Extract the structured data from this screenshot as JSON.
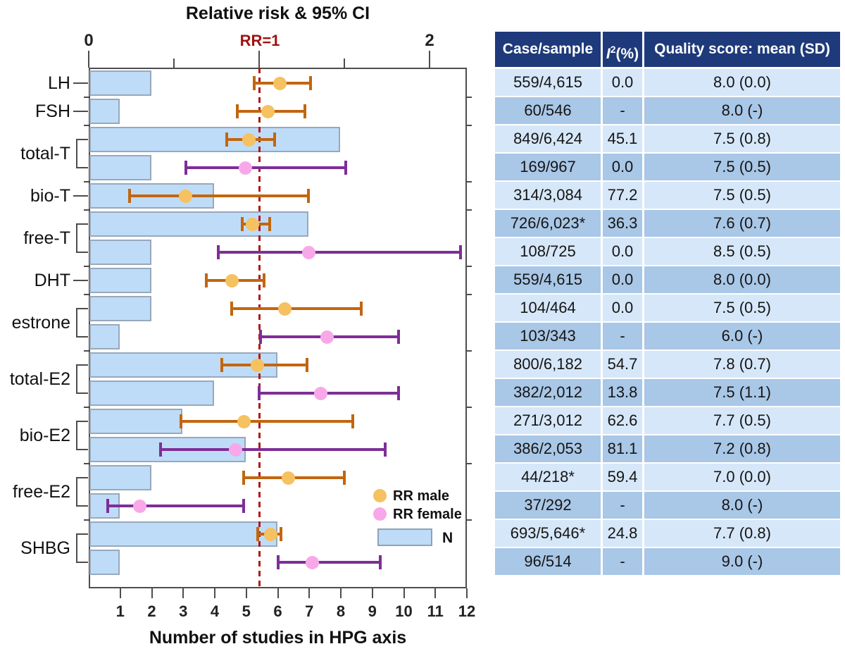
{
  "colors": {
    "male_point": "#F6C160",
    "male_line": "#C2660F",
    "female_point": "#F8A8E8",
    "female_line": "#7E2E96",
    "bar_fill": "#BEDCF8",
    "bar_border": "#98A8BC",
    "ref_line": "#B01818",
    "frame": "#4d4d4d",
    "table_header_bg": "#1E3A7B",
    "table_row_light": "#D6E7F9",
    "table_row_dark": "#A9C7E6"
  },
  "chart_data": {
    "type": "forest+bar",
    "title": "Relative risk & 95% CI",
    "top_axis": {
      "center_label": "RR=1",
      "min": 0,
      "max_edge": 2.22,
      "major_ticks": [
        0,
        1,
        2
      ],
      "minor_ticks": [
        0.5,
        1.5
      ],
      "labeled_ticks": [
        0,
        2
      ],
      "ref_line": 1
    },
    "bottom_axis": {
      "title": "Number of studies in HPG axis",
      "min": 0,
      "max": 12,
      "ticks": [
        1,
        2,
        3,
        4,
        5,
        6,
        7,
        8,
        9,
        10,
        11,
        12
      ]
    },
    "legend": {
      "male_label": "RR male",
      "female_label": "RR female",
      "bar_label": "N"
    },
    "rows": [
      {
        "category": "LH",
        "sex": "male",
        "n_studies": 2,
        "rr": 1.12,
        "ci": [
          0.97,
          1.3
        ]
      },
      {
        "category": "FSH",
        "sex": "male",
        "n_studies": 1,
        "rr": 1.05,
        "ci": [
          0.87,
          1.27
        ]
      },
      {
        "category": "total-T",
        "sex": "male",
        "n_studies": 8,
        "rr": 0.94,
        "ci": [
          0.81,
          1.09
        ]
      },
      {
        "category": "total-T",
        "sex": "female",
        "n_studies": 2,
        "rr": 0.92,
        "ci": [
          0.57,
          1.51
        ]
      },
      {
        "category": "bio-T",
        "sex": "male",
        "n_studies": 4,
        "rr": 0.57,
        "ci": [
          0.24,
          1.29
        ]
      },
      {
        "category": "free-T",
        "sex": "male",
        "n_studies": 7,
        "rr": 0.96,
        "ci": [
          0.9,
          1.06
        ]
      },
      {
        "category": "free-T",
        "sex": "female",
        "n_studies": 2,
        "rr": 1.29,
        "ci": [
          0.76,
          2.18
        ]
      },
      {
        "category": "DHT",
        "sex": "male",
        "n_studies": 2,
        "rr": 0.84,
        "ci": [
          0.69,
          1.03
        ]
      },
      {
        "category": "estrone",
        "sex": "male",
        "n_studies": 2,
        "rr": 1.15,
        "ci": [
          0.84,
          1.6
        ]
      },
      {
        "category": "estrone",
        "sex": "female",
        "n_studies": 1,
        "rr": 1.4,
        "ci": [
          1.01,
          1.82
        ]
      },
      {
        "category": "total-E2",
        "sex": "male",
        "n_studies": 6,
        "rr": 0.99,
        "ci": [
          0.78,
          1.28
        ]
      },
      {
        "category": "total-E2",
        "sex": "female",
        "n_studies": 4,
        "rr": 1.36,
        "ci": [
          1.0,
          1.82
        ]
      },
      {
        "category": "bio-E2",
        "sex": "male",
        "n_studies": 3,
        "rr": 0.91,
        "ci": [
          0.54,
          1.55
        ]
      },
      {
        "category": "bio-E2",
        "sex": "female",
        "n_studies": 5,
        "rr": 0.86,
        "ci": [
          0.42,
          1.74
        ]
      },
      {
        "category": "free-E2",
        "sex": "male",
        "n_studies": 2,
        "rr": 1.17,
        "ci": [
          0.91,
          1.5
        ]
      },
      {
        "category": "free-E2",
        "sex": "female",
        "n_studies": 1,
        "rr": 0.3,
        "ci": [
          0.11,
          0.91
        ]
      },
      {
        "category": "SHBG",
        "sex": "male",
        "n_studies": 6,
        "rr": 1.07,
        "ci": [
          0.99,
          1.13
        ]
      },
      {
        "category": "SHBG",
        "sex": "female",
        "n_studies": 1,
        "rr": 1.31,
        "ci": [
          1.11,
          1.71
        ]
      }
    ]
  },
  "table": {
    "headers": {
      "col1": "Case/sample",
      "col2_base": "I",
      "col2_sup": "2",
      "col2_rest": "(%)",
      "col3": "Quality score: mean (SD)"
    },
    "rows": [
      [
        "559/4,615",
        "0.0",
        "8.0 (0.0)"
      ],
      [
        "60/546",
        "-",
        "8.0 (-)"
      ],
      [
        "849/6,424",
        "45.1",
        "7.5 (0.8)"
      ],
      [
        "169/967",
        "0.0",
        "7.5 (0.5)"
      ],
      [
        "314/3,084",
        "77.2",
        "7.5 (0.5)"
      ],
      [
        "726/6,023*",
        "36.3",
        "7.6 (0.7)"
      ],
      [
        "108/725",
        "0.0",
        "8.5 (0.5)"
      ],
      [
        "559/4,615",
        "0.0",
        "8.0 (0.0)"
      ],
      [
        "104/464",
        "0.0",
        "7.5 (0.5)"
      ],
      [
        "103/343",
        "-",
        "6.0 (-)"
      ],
      [
        "800/6,182",
        "54.7",
        "7.8 (0.7)"
      ],
      [
        "382/2,012",
        "13.8",
        "7.5 (1.1)"
      ],
      [
        "271/3,012",
        "62.6",
        "7.7 (0.5)"
      ],
      [
        "386/2,053",
        "81.1",
        "7.2 (0.8)"
      ],
      [
        "44/218*",
        "59.4",
        "7.0 (0.0)"
      ],
      [
        "37/292",
        "-",
        "8.0 (-)"
      ],
      [
        "693/5,646*",
        "24.8",
        "7.7 (0.8)"
      ],
      [
        "96/514",
        "-",
        "9.0 (-)"
      ]
    ]
  }
}
